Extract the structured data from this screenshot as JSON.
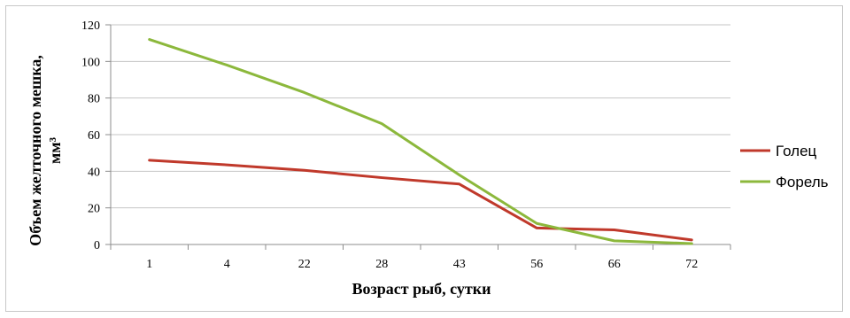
{
  "chart_data": {
    "type": "line",
    "categories": [
      "1",
      "4",
      "22",
      "28",
      "43",
      "56",
      "66",
      "72"
    ],
    "series": [
      {
        "name": "Голец",
        "values": [
          46,
          43.5,
          40.5,
          36.5,
          33,
          9,
          8,
          2.5
        ],
        "color": "#c0392b"
      },
      {
        "name": "Форель",
        "values": [
          112,
          98,
          83,
          66,
          38,
          11.5,
          2,
          0.5
        ],
        "color": "#8cb83c"
      }
    ],
    "xlabel": "Возраст рыб, сутки",
    "ylabel_line1": "Объем желточного мешка,",
    "ylabel_line2": "мм³",
    "ylim": [
      0,
      120
    ],
    "yticks": [
      "0",
      "20",
      "40",
      "60",
      "80",
      "100",
      "120"
    ],
    "grid": true,
    "legend_position": "right"
  }
}
